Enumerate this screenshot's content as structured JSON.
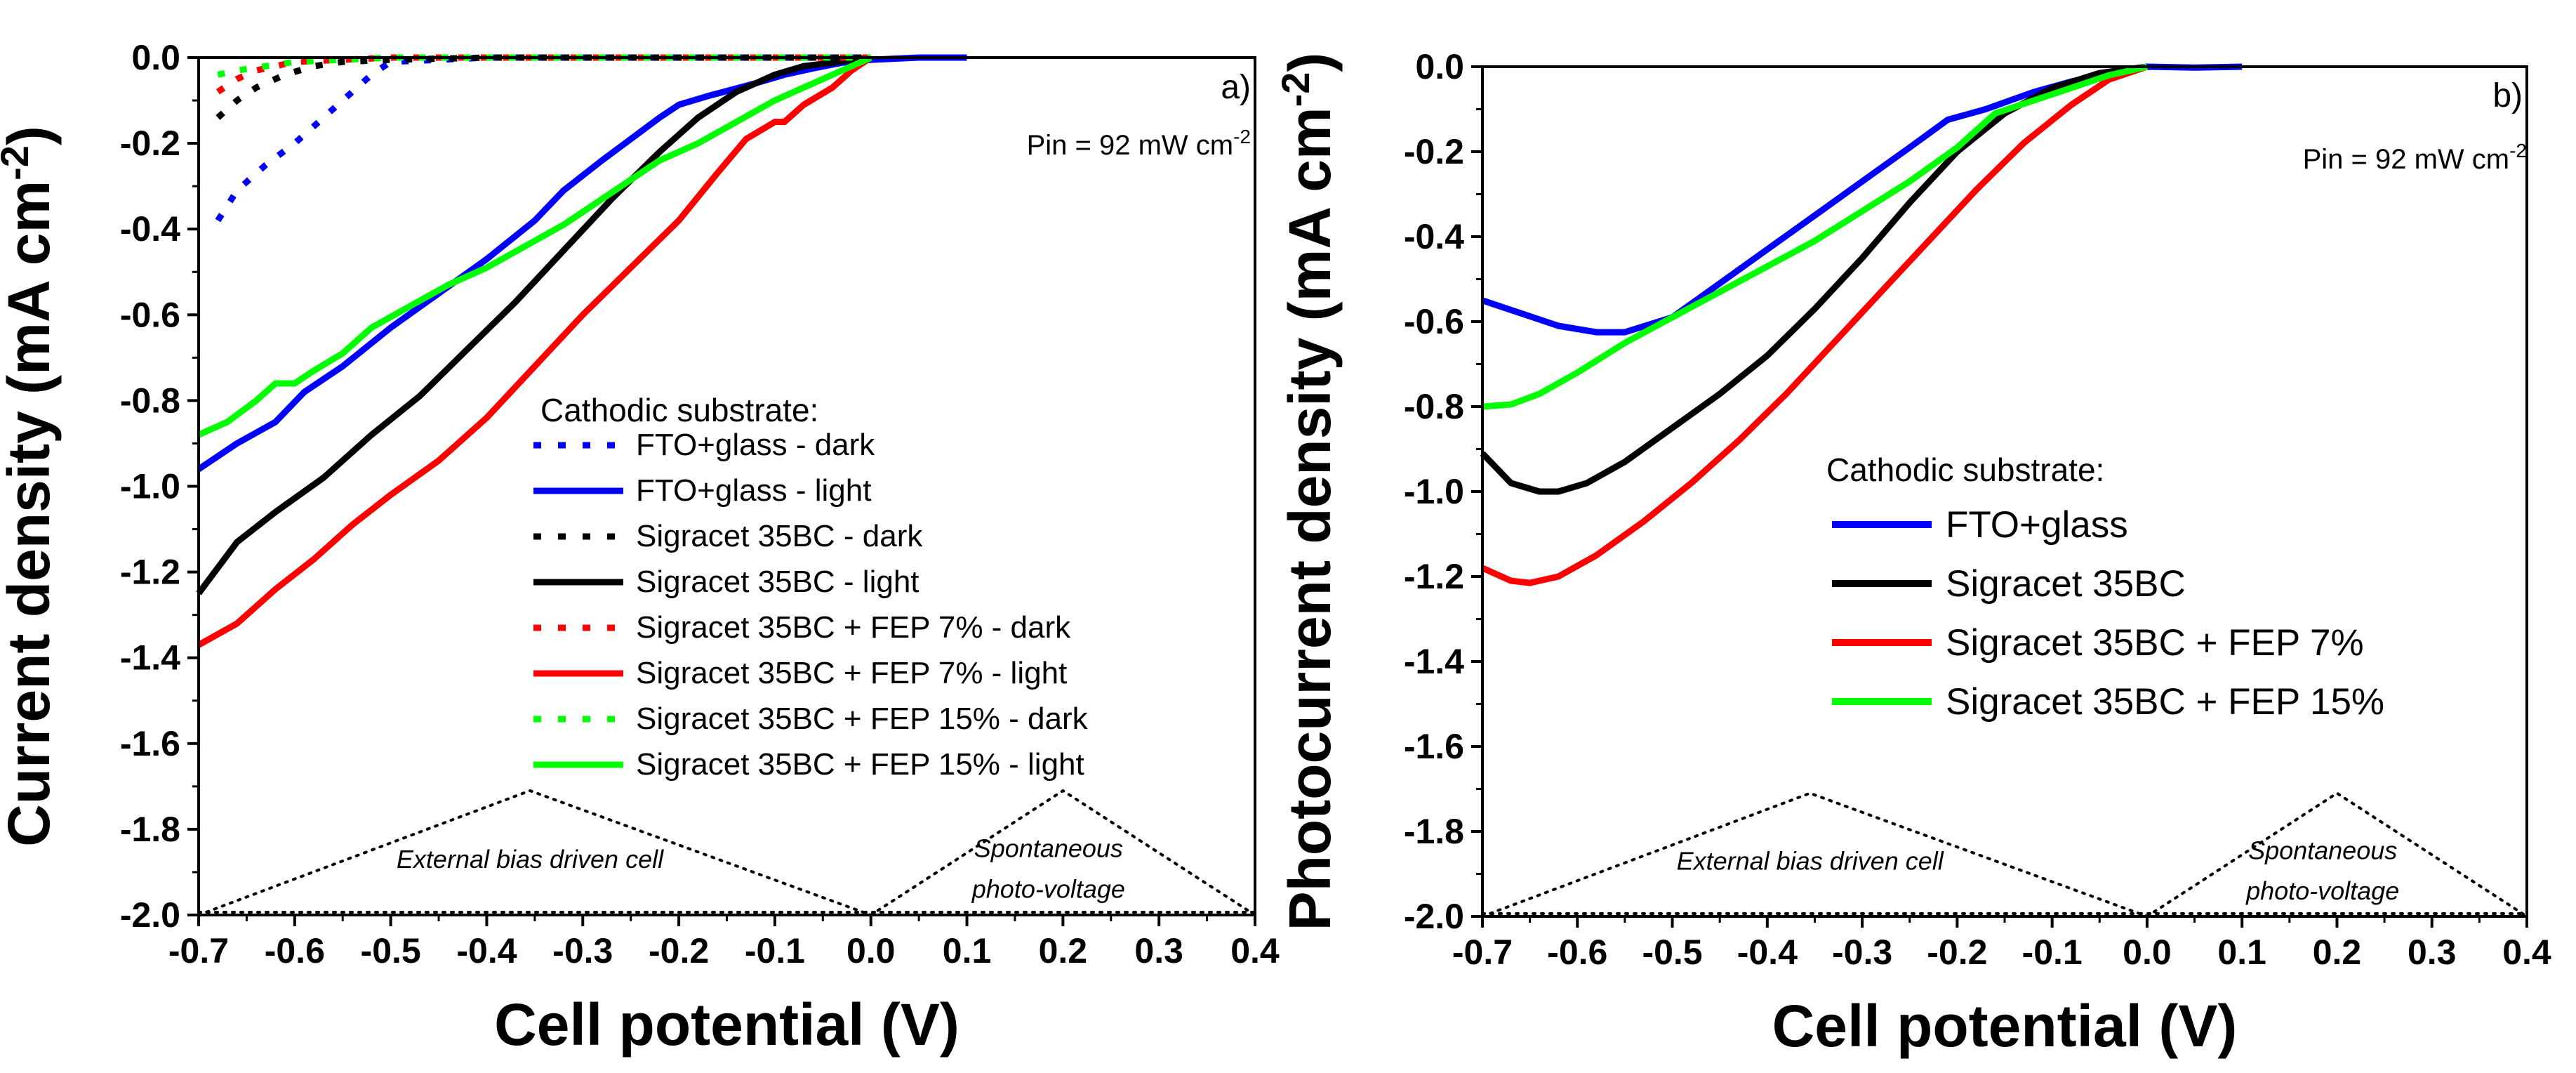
{
  "chart_data": [
    {
      "type": "line",
      "panel_label": "a)",
      "xlabel": "Cell potential (V)",
      "ylabel_main": "Current density (mA cm",
      "ylabel_sup": "-2",
      "ylabel_close": ")",
      "xlim": [
        -0.7,
        0.4
      ],
      "ylim": [
        -2.0,
        0.0
      ],
      "xticks": [
        -0.7,
        -0.6,
        -0.5,
        -0.4,
        -0.3,
        -0.2,
        -0.1,
        0.0,
        0.1,
        0.2,
        0.3,
        0.4
      ],
      "xtick_labels": [
        "-0.7",
        "-0.6",
        "-0.5",
        "-0.4",
        "-0.3",
        "-0.2",
        "-0.1",
        "0.0",
        "0.1",
        "0.2",
        "0.3",
        "0.4"
      ],
      "yticks": [
        -2.0,
        -1.8,
        -1.6,
        -1.4,
        -1.2,
        -1.0,
        -0.8,
        -0.6,
        -0.4,
        -0.2,
        0.0
      ],
      "ytick_labels": [
        "-2.0",
        "-1.8",
        "-1.6",
        "-1.4",
        "-1.2",
        "-1.0",
        "-0.8",
        "-0.6",
        "-0.4",
        "-0.2",
        "0.0"
      ],
      "annotation_main": "Pin = 92 mW cm",
      "annotation_sup": "-2",
      "legend_title": "Cathodic substrate:",
      "legend_placement": "center-right",
      "regions": [
        {
          "label": "External bias driven cell",
          "lines": [
            "External bias driven cell"
          ],
          "x": [
            -0.7,
            -0.355,
            0.0
          ],
          "y": [
            -2.0,
            -1.71,
            -2.0
          ]
        },
        {
          "label": "Spontaneous photo-voltage",
          "lines": [
            "Spontaneous",
            "photo-voltage"
          ],
          "x": [
            0.0,
            0.2,
            0.4
          ],
          "y": [
            -2.0,
            -1.71,
            -2.0
          ]
        }
      ],
      "series": [
        {
          "name": "FTO+glass - dark",
          "color": "#0000ff",
          "style": "dotted",
          "x": [
            -0.68,
            -0.66,
            -0.63,
            -0.6,
            -0.57,
            -0.54,
            -0.52,
            -0.5,
            -0.45,
            -0.4,
            -0.3,
            -0.2,
            -0.1,
            0.0
          ],
          "y": [
            -0.38,
            -0.31,
            -0.25,
            -0.2,
            -0.14,
            -0.08,
            -0.04,
            -0.01,
            -0.005,
            0.0,
            0.0,
            0.0,
            0.0,
            0.0
          ]
        },
        {
          "name": "FTO+glass - light",
          "color": "#0000ff",
          "style": "solid",
          "x": [
            -0.7,
            -0.66,
            -0.62,
            -0.59,
            -0.55,
            -0.5,
            -0.45,
            -0.4,
            -0.35,
            -0.32,
            -0.28,
            -0.25,
            -0.22,
            -0.2,
            -0.17,
            -0.12,
            -0.09,
            -0.06,
            -0.03,
            0.0,
            0.05,
            0.1
          ],
          "y": [
            -0.96,
            -0.9,
            -0.85,
            -0.78,
            -0.72,
            -0.63,
            -0.55,
            -0.47,
            -0.38,
            -0.31,
            -0.24,
            -0.19,
            -0.14,
            -0.11,
            -0.09,
            -0.06,
            -0.04,
            -0.025,
            -0.012,
            -0.005,
            0.0,
            0.0
          ]
        },
        {
          "name": "Sigracet 35BC - dark",
          "color": "#000000",
          "style": "dotted",
          "x": [
            -0.68,
            -0.66,
            -0.64,
            -0.61,
            -0.58,
            -0.55,
            -0.5,
            -0.4,
            -0.3,
            -0.2,
            -0.1,
            0.0
          ],
          "y": [
            -0.14,
            -0.1,
            -0.07,
            -0.04,
            -0.02,
            -0.01,
            -0.005,
            0.0,
            0.0,
            0.0,
            0.0,
            0.0
          ]
        },
        {
          "name": "Sigracet 35BC - light",
          "color": "#000000",
          "style": "solid",
          "x": [
            -0.7,
            -0.66,
            -0.62,
            -0.57,
            -0.52,
            -0.47,
            -0.42,
            -0.37,
            -0.32,
            -0.27,
            -0.22,
            -0.18,
            -0.14,
            -0.1,
            -0.07,
            -0.04,
            -0.02,
            0.0
          ],
          "y": [
            -1.25,
            -1.13,
            -1.06,
            -0.98,
            -0.88,
            -0.79,
            -0.68,
            -0.57,
            -0.45,
            -0.33,
            -0.22,
            -0.14,
            -0.08,
            -0.04,
            -0.02,
            -0.012,
            -0.005,
            0.0
          ]
        },
        {
          "name": "Sigracet 35BC + FEP 7% - dark",
          "color": "#ff0000",
          "style": "dotted",
          "x": [
            -0.68,
            -0.66,
            -0.64,
            -0.62,
            -0.6,
            -0.55,
            -0.5,
            -0.4,
            -0.3,
            -0.2,
            -0.1,
            0.0
          ],
          "y": [
            -0.08,
            -0.05,
            -0.03,
            -0.02,
            -0.01,
            -0.005,
            0.0,
            0.0,
            0.0,
            0.0,
            0.0,
            0.0
          ]
        },
        {
          "name": "Sigracet 35BC + FEP 7% - light",
          "color": "#ff0000",
          "style": "solid",
          "x": [
            -0.7,
            -0.66,
            -0.62,
            -0.58,
            -0.54,
            -0.5,
            -0.45,
            -0.4,
            -0.35,
            -0.3,
            -0.25,
            -0.2,
            -0.16,
            -0.13,
            -0.1,
            -0.09,
            -0.07,
            -0.04,
            -0.02,
            0.0
          ],
          "y": [
            -1.37,
            -1.32,
            -1.24,
            -1.17,
            -1.09,
            -1.02,
            -0.94,
            -0.84,
            -0.72,
            -0.6,
            -0.49,
            -0.38,
            -0.27,
            -0.19,
            -0.15,
            -0.15,
            -0.11,
            -0.07,
            -0.03,
            0.0
          ]
        },
        {
          "name": "Sigracet 35BC + FEP 15% - dark",
          "color": "#00ff00",
          "style": "dotted",
          "x": [
            -0.68,
            -0.66,
            -0.63,
            -0.6,
            -0.55,
            -0.5,
            -0.4,
            -0.3,
            -0.2,
            -0.1,
            0.0
          ],
          "y": [
            -0.04,
            -0.03,
            -0.02,
            -0.01,
            -0.005,
            0.0,
            0.0,
            0.0,
            0.0,
            0.0,
            0.0
          ]
        },
        {
          "name": "Sigracet 35BC + FEP 15% - light",
          "color": "#00ff00",
          "style": "solid",
          "x": [
            -0.7,
            -0.67,
            -0.64,
            -0.62,
            -0.6,
            -0.58,
            -0.55,
            -0.52,
            -0.48,
            -0.44,
            -0.4,
            -0.36,
            -0.32,
            -0.28,
            -0.24,
            -0.22,
            -0.18,
            -0.14,
            -0.1,
            -0.06,
            -0.03,
            0.0
          ],
          "y": [
            -0.88,
            -0.85,
            -0.8,
            -0.76,
            -0.76,
            -0.73,
            -0.69,
            -0.63,
            -0.58,
            -0.53,
            -0.49,
            -0.44,
            -0.39,
            -0.33,
            -0.27,
            -0.24,
            -0.2,
            -0.15,
            -0.1,
            -0.06,
            -0.03,
            0.0
          ]
        }
      ],
      "legend_entries": [
        "FTO+glass - dark",
        "FTO+glass - light",
        "Sigracet 35BC - dark",
        "Sigracet 35BC - light",
        "Sigracet 35BC + FEP 7% - dark",
        "Sigracet 35BC + FEP 7% - light",
        "Sigracet 35BC + FEP 15% - dark",
        "Sigracet 35BC + FEP 15% - light"
      ]
    },
    {
      "type": "line",
      "panel_label": "b)",
      "xlabel": "Cell potential (V)",
      "ylabel_main": "Photocurrent density (mA cm",
      "ylabel_sup": "-2",
      "ylabel_close": ")",
      "xlim": [
        -0.7,
        0.4
      ],
      "ylim": [
        -2.0,
        0.0
      ],
      "xticks": [
        -0.7,
        -0.6,
        -0.5,
        -0.4,
        -0.3,
        -0.2,
        -0.1,
        0.0,
        0.1,
        0.2,
        0.3,
        0.4
      ],
      "xtick_labels": [
        "-0.7",
        "-0.6",
        "-0.5",
        "-0.4",
        "-0.3",
        "-0.2",
        "-0.1",
        "0.0",
        "0.1",
        "0.2",
        "0.3",
        "0.4"
      ],
      "yticks": [
        -2.0,
        -1.8,
        -1.6,
        -1.4,
        -1.2,
        -1.0,
        -0.8,
        -0.6,
        -0.4,
        -0.2,
        0.0
      ],
      "ytick_labels": [
        "-2.0",
        "-1.8",
        "-1.6",
        "-1.4",
        "-1.2",
        "-1.0",
        "-0.8",
        "-0.6",
        "-0.4",
        "-0.2",
        "0.0"
      ],
      "annotation_main": "Pin = 92 mW cm",
      "annotation_sup": "-2",
      "legend_title": "Cathodic substrate:",
      "legend_placement": "center-right",
      "regions": [
        {
          "label": "External bias driven cell",
          "lines": [
            "External bias driven cell"
          ],
          "x": [
            -0.7,
            -0.355,
            0.0
          ],
          "y": [
            -2.0,
            -1.71,
            -2.0
          ]
        },
        {
          "label": "Spontaneous photo-voltage",
          "lines": [
            "Spontaneous",
            "photo-voltage"
          ],
          "x": [
            0.0,
            0.2,
            0.4
          ],
          "y": [
            -2.0,
            -1.71,
            -2.0
          ]
        }
      ],
      "series": [
        {
          "name": "FTO+glass",
          "color": "#0000ff",
          "style": "solid",
          "x": [
            -0.7,
            -0.66,
            -0.62,
            -0.58,
            -0.55,
            -0.5,
            -0.45,
            -0.4,
            -0.35,
            -0.3,
            -0.25,
            -0.21,
            -0.17,
            -0.12,
            -0.08,
            -0.04,
            0.0,
            0.05,
            0.1
          ],
          "y": [
            -0.55,
            -0.58,
            -0.61,
            -0.625,
            -0.625,
            -0.59,
            -0.51,
            -0.43,
            -0.35,
            -0.27,
            -0.19,
            -0.125,
            -0.1,
            -0.06,
            -0.035,
            -0.015,
            0.0,
            -0.002,
            0.0
          ]
        },
        {
          "name": "Sigracet 35BC",
          "color": "#000000",
          "style": "solid",
          "x": [
            -0.7,
            -0.67,
            -0.64,
            -0.62,
            -0.59,
            -0.55,
            -0.5,
            -0.45,
            -0.4,
            -0.35,
            -0.3,
            -0.25,
            -0.2,
            -0.15,
            -0.1,
            -0.05,
            0.0
          ],
          "y": [
            -0.91,
            -0.98,
            -1.0,
            -1.0,
            -0.98,
            -0.93,
            -0.85,
            -0.77,
            -0.68,
            -0.57,
            -0.45,
            -0.32,
            -0.2,
            -0.11,
            -0.05,
            -0.015,
            0.0
          ]
        },
        {
          "name": "Sigracet 35BC + FEP 7%",
          "color": "#ff0000",
          "style": "solid",
          "x": [
            -0.7,
            -0.67,
            -0.65,
            -0.62,
            -0.58,
            -0.53,
            -0.48,
            -0.43,
            -0.38,
            -0.33,
            -0.28,
            -0.23,
            -0.18,
            -0.13,
            -0.08,
            -0.04,
            0.0
          ],
          "y": [
            -1.18,
            -1.21,
            -1.215,
            -1.2,
            -1.15,
            -1.07,
            -0.98,
            -0.88,
            -0.77,
            -0.65,
            -0.53,
            -0.41,
            -0.29,
            -0.18,
            -0.09,
            -0.03,
            0.0
          ]
        },
        {
          "name": "Sigracet 35BC + FEP 15%",
          "color": "#00ff00",
          "style": "solid",
          "x": [
            -0.7,
            -0.67,
            -0.64,
            -0.6,
            -0.55,
            -0.5,
            -0.45,
            -0.4,
            -0.35,
            -0.3,
            -0.25,
            -0.2,
            -0.16,
            -0.12,
            -0.08,
            -0.04,
            0.0
          ],
          "y": [
            -0.8,
            -0.795,
            -0.77,
            -0.72,
            -0.65,
            -0.59,
            -0.53,
            -0.47,
            -0.41,
            -0.34,
            -0.27,
            -0.19,
            -0.11,
            -0.08,
            -0.05,
            -0.02,
            0.0
          ]
        }
      ],
      "legend_entries": [
        "FTO+glass",
        "Sigracet 35BC",
        "Sigracet 35BC + FEP 7%",
        "Sigracet 35BC + FEP 15%"
      ]
    }
  ]
}
